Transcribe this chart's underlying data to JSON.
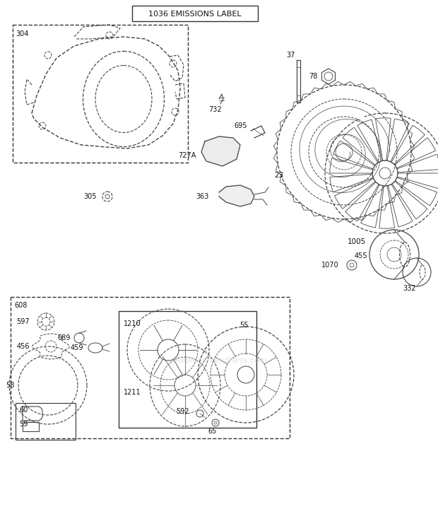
{
  "title": "1036 EMISSIONS LABEL",
  "bg_color": "#ffffff",
  "line_color": "#444444",
  "text_color": "#111111",
  "border_color": "#333333",
  "watermark": "eReplacementParts.com",
  "figsize": [
    6.2,
    7.44
  ],
  "dpi": 100
}
